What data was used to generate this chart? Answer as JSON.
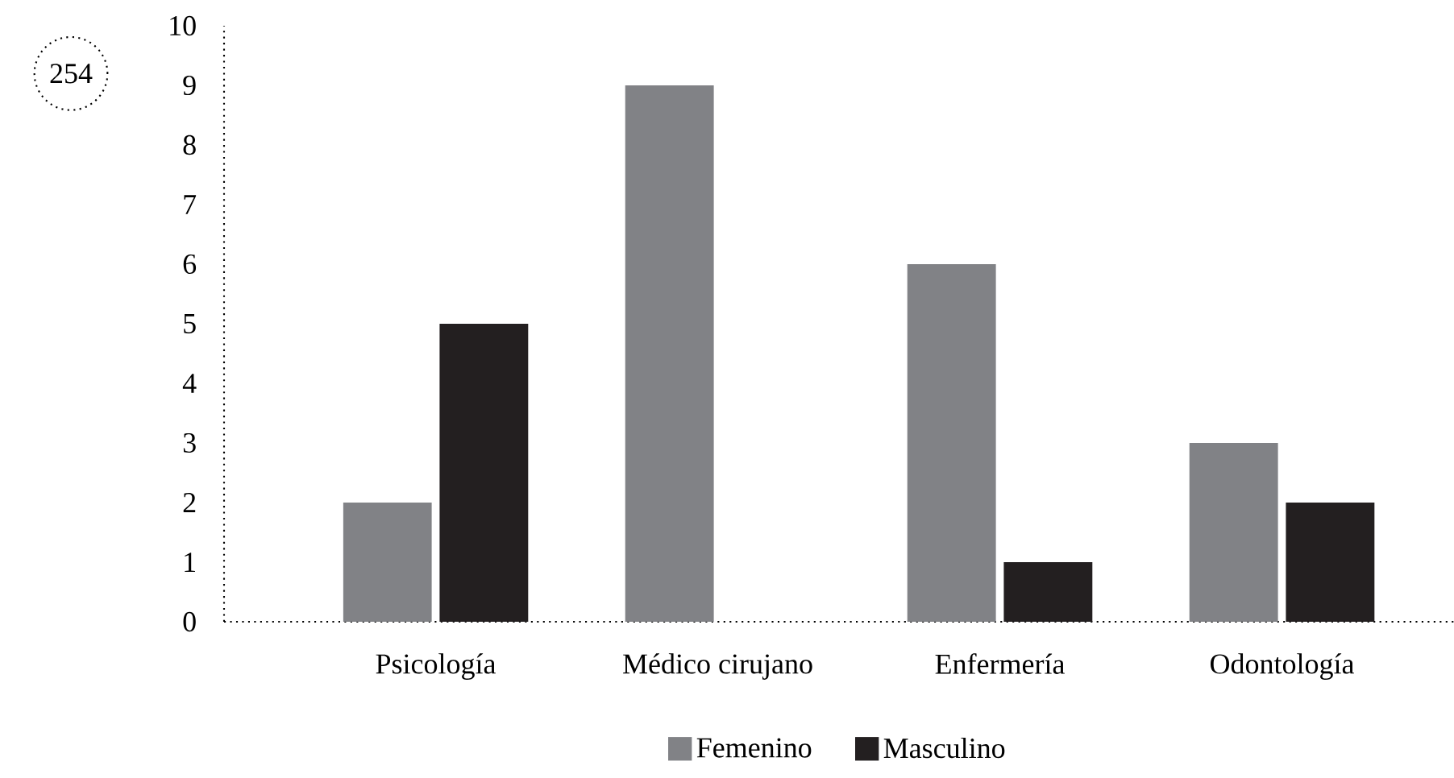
{
  "chart_data": {
    "type": "bar",
    "categories": [
      "Psicología",
      "Médico cirujano",
      "Enfermería",
      "Odontología"
    ],
    "series": [
      {
        "name": "Femenino",
        "color": "#818286",
        "values": [
          2,
          9,
          6,
          3
        ]
      },
      {
        "name": "Masculino",
        "color": "#231f20",
        "values": [
          5,
          0,
          1,
          2
        ]
      }
    ],
    "ylim": [
      0,
      10
    ],
    "yticks": [
      0,
      1,
      2,
      3,
      4,
      5,
      6,
      7,
      8,
      9,
      10
    ],
    "grid": false,
    "legend": "bottom",
    "annotations": [
      "254"
    ]
  }
}
